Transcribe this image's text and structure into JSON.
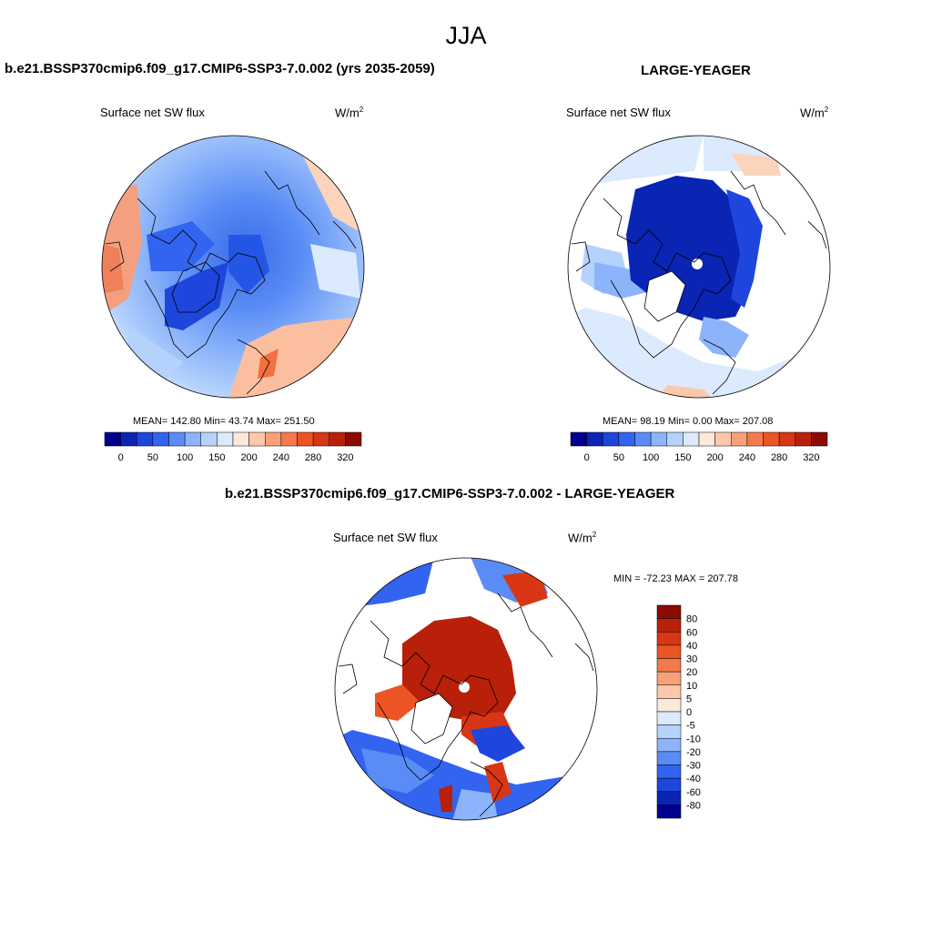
{
  "season": "JJA",
  "panels": [
    {
      "title": "b.e21.BSSP370cmip6.f09_g17.CMIP6-SSP3-7.0.002 (yrs 2035-2059)",
      "variable": "Surface net SW flux",
      "units": "W/m",
      "units_sup": "2",
      "stats": "MEAN= 142.80  Min=  43.74  Max= 251.50",
      "mean": 142.8,
      "min": 43.74,
      "max": 251.5
    },
    {
      "title": "LARGE-YEAGER",
      "variable": "Surface net SW flux",
      "units": "W/m",
      "units_sup": "2",
      "stats": "MEAN=  98.19  Min=   0.00  Max= 207.08",
      "mean": 98.19,
      "min": 0.0,
      "max": 207.08
    },
    {
      "title": "b.e21.BSSP370cmip6.f09_g17.CMIP6-SSP3-7.0.002 - LARGE-YEAGER",
      "variable": "Surface net SW flux",
      "units": "W/m",
      "units_sup": "2",
      "stats": "MIN = -72.23 MAX = 207.78",
      "min": -72.23,
      "max": 207.78
    }
  ],
  "colorbar_abs": {
    "labels": [
      "0",
      "50",
      "100",
      "150",
      "200",
      "240",
      "280",
      "320"
    ],
    "colors": [
      "#00008c",
      "#0a24b4",
      "#1e46dc",
      "#3264f0",
      "#5a8cf5",
      "#8cb4fa",
      "#b4d2fc",
      "#dceafe",
      "#fde9dc",
      "#fcc8aa",
      "#f9a079",
      "#f47a4c",
      "#ed5424",
      "#d83614",
      "#b8200a",
      "#8c0a00"
    ]
  },
  "colorbar_diff": {
    "labels": [
      "80",
      "60",
      "40",
      "30",
      "20",
      "10",
      "5",
      "0",
      "-5",
      "-10",
      "-20",
      "-30",
      "-40",
      "-60",
      "-80"
    ],
    "colors": [
      "#8c0a00",
      "#b8200a",
      "#d83614",
      "#ed5424",
      "#f47a4c",
      "#f9a079",
      "#fcc8aa",
      "#fde9dc",
      "#dceafe",
      "#b4d2fc",
      "#8cb4fa",
      "#5a8cf5",
      "#3264f0",
      "#1e46dc",
      "#0a24b4",
      "#00008c"
    ]
  }
}
